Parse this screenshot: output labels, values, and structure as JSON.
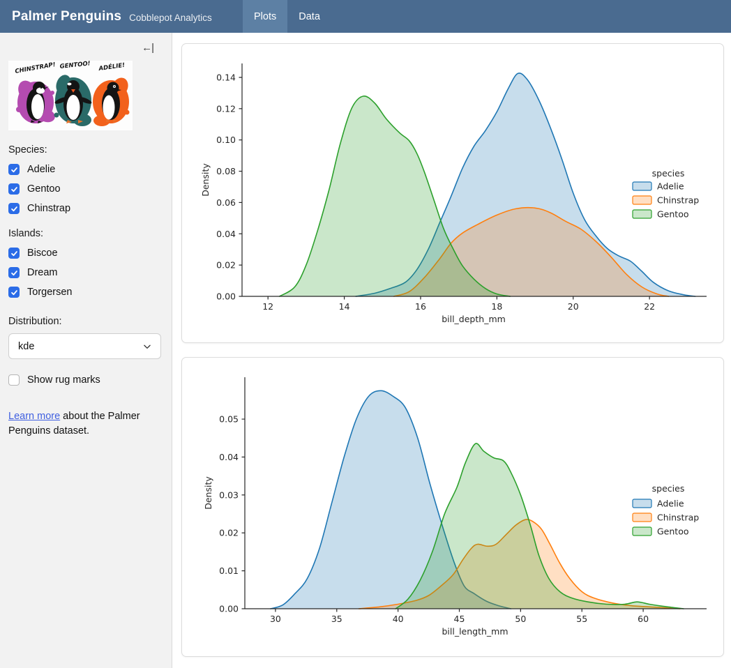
{
  "navbar": {
    "brand": "Palmer Penguins",
    "subtitle": "Cobblepot Analytics",
    "tabs": [
      {
        "label": "Plots",
        "active": true
      },
      {
        "label": "Data",
        "active": false
      }
    ]
  },
  "sidebar": {
    "collapse_glyph": "←|",
    "artwork": {
      "labels": [
        "CHINSTRAP!",
        "GENTOO!",
        "ADÉLIE!"
      ],
      "splash_colors": [
        "#b44bb0",
        "#2a6a68",
        "#f2611c"
      ]
    },
    "species": {
      "label": "Species:",
      "options": [
        {
          "label": "Adelie",
          "checked": true
        },
        {
          "label": "Gentoo",
          "checked": true
        },
        {
          "label": "Chinstrap",
          "checked": true
        }
      ]
    },
    "islands": {
      "label": "Islands:",
      "options": [
        {
          "label": "Biscoe",
          "checked": true
        },
        {
          "label": "Dream",
          "checked": true
        },
        {
          "label": "Torgersen",
          "checked": true
        }
      ]
    },
    "distribution": {
      "label": "Distribution:",
      "value": "kde"
    },
    "rug": {
      "label": "Show rug marks",
      "checked": false
    },
    "footer": {
      "link_text": "Learn more",
      "rest_text": " about the Palmer Penguins dataset."
    }
  },
  "theme": {
    "navbar_bg": "#4a6b90",
    "navbar_active_tab_bg": "#5d80a4",
    "sidebar_bg": "#f2f2f2",
    "checkbox_blue": "#2b6ce7",
    "link_blue": "#3f5fe0"
  },
  "chart_data": [
    {
      "type": "area",
      "subtype": "kde-density",
      "xlabel": "bill_depth_mm",
      "ylabel": "Density",
      "xlim": [
        11.32,
        23.46
      ],
      "ylim": [
        0,
        0.1489
      ],
      "xticks": [
        12,
        14,
        16,
        18,
        20,
        22
      ],
      "xtick_labels": [
        "12",
        "14",
        "16",
        "18",
        "20",
        "22"
      ],
      "yticks": [
        0,
        0.02,
        0.04,
        0.06,
        0.08,
        0.1,
        0.12,
        0.14
      ],
      "ytick_labels": [
        "0.00",
        "0.02",
        "0.04",
        "0.06",
        "0.08",
        "0.10",
        "0.12",
        "0.14"
      ],
      "grid": false,
      "legend": {
        "title": "species",
        "entries": [
          "Adelie",
          "Chinstrap",
          "Gentoo"
        ],
        "position": "center-right"
      },
      "series": [
        {
          "name": "Adelie",
          "color": "#1f77b4",
          "fill_opacity": 0.25,
          "points": [
            [
              14.3,
              0
            ],
            [
              14.8,
              0.002
            ],
            [
              15.2,
              0.005
            ],
            [
              15.6,
              0.009
            ],
            [
              15.9,
              0.017
            ],
            [
              16.2,
              0.03
            ],
            [
              16.5,
              0.047
            ],
            [
              16.8,
              0.064
            ],
            [
              17.1,
              0.082
            ],
            [
              17.4,
              0.096
            ],
            [
              17.7,
              0.106
            ],
            [
              18.0,
              0.118
            ],
            [
              18.3,
              0.133
            ],
            [
              18.55,
              0.1425
            ],
            [
              18.8,
              0.1385
            ],
            [
              19.1,
              0.1255
            ],
            [
              19.4,
              0.108
            ],
            [
              19.7,
              0.088
            ],
            [
              20.0,
              0.066
            ],
            [
              20.3,
              0.049
            ],
            [
              20.6,
              0.0385
            ],
            [
              20.9,
              0.0305
            ],
            [
              21.2,
              0.0258
            ],
            [
              21.5,
              0.0225
            ],
            [
              21.8,
              0.016
            ],
            [
              22.1,
              0.009
            ],
            [
              22.5,
              0.0035
            ],
            [
              22.9,
              0.001
            ],
            [
              23.2,
              0
            ]
          ]
        },
        {
          "name": "Chinstrap",
          "color": "#ff7f0e",
          "fill_opacity": 0.25,
          "points": [
            [
              15.3,
              0
            ],
            [
              15.7,
              0.003
            ],
            [
              16.1,
              0.012
            ],
            [
              16.5,
              0.024
            ],
            [
              16.8,
              0.034
            ],
            [
              17.1,
              0.0405
            ],
            [
              17.5,
              0.046
            ],
            [
              18.0,
              0.052
            ],
            [
              18.5,
              0.056
            ],
            [
              19.0,
              0.0565
            ],
            [
              19.4,
              0.0535
            ],
            [
              19.8,
              0.048
            ],
            [
              20.2,
              0.043
            ],
            [
              20.6,
              0.035
            ],
            [
              21.0,
              0.025
            ],
            [
              21.4,
              0.014
            ],
            [
              21.8,
              0.006
            ],
            [
              22.2,
              0.0015
            ],
            [
              22.5,
              0
            ]
          ]
        },
        {
          "name": "Gentoo",
          "color": "#2ca02c",
          "fill_opacity": 0.25,
          "points": [
            [
              12.3,
              0
            ],
            [
              12.7,
              0.006
            ],
            [
              13.0,
              0.02
            ],
            [
              13.3,
              0.042
            ],
            [
              13.6,
              0.068
            ],
            [
              13.9,
              0.098
            ],
            [
              14.2,
              0.1205
            ],
            [
              14.5,
              0.128
            ],
            [
              14.8,
              0.1235
            ],
            [
              15.1,
              0.1135
            ],
            [
              15.45,
              0.1045
            ],
            [
              15.7,
              0.0995
            ],
            [
              15.9,
              0.0915
            ],
            [
              16.1,
              0.0795
            ],
            [
              16.35,
              0.0615
            ],
            [
              16.6,
              0.0435
            ],
            [
              16.85,
              0.0305
            ],
            [
              17.1,
              0.0195
            ],
            [
              17.4,
              0.011
            ],
            [
              17.7,
              0.005
            ],
            [
              18.0,
              0.0015
            ],
            [
              18.35,
              0
            ]
          ]
        }
      ]
    },
    {
      "type": "area",
      "subtype": "kde-density",
      "xlabel": "bill_length_mm",
      "ylabel": "Density",
      "xlim": [
        27.5,
        65.06
      ],
      "ylim": [
        0,
        0.06104
      ],
      "xticks": [
        30,
        35,
        40,
        45,
        50,
        55,
        60
      ],
      "xtick_labels": [
        "30",
        "35",
        "40",
        "45",
        "50",
        "55",
        "60"
      ],
      "yticks": [
        0,
        0.01,
        0.02,
        0.03,
        0.04,
        0.05
      ],
      "ytick_labels": [
        "0.00",
        "0.01",
        "0.02",
        "0.03",
        "0.04",
        "0.05"
      ],
      "grid": false,
      "legend": {
        "title": "species",
        "entries": [
          "Adelie",
          "Chinstrap",
          "Gentoo"
        ],
        "position": "center-right"
      },
      "series": [
        {
          "name": "Adelie",
          "color": "#1f77b4",
          "fill_opacity": 0.25,
          "points": [
            [
              29.6,
              0
            ],
            [
              30.6,
              0.001
            ],
            [
              31.6,
              0.004
            ],
            [
              32.6,
              0.008
            ],
            [
              33.6,
              0.016
            ],
            [
              34.6,
              0.028
            ],
            [
              35.6,
              0.04
            ],
            [
              36.6,
              0.05
            ],
            [
              37.6,
              0.056
            ],
            [
              38.6,
              0.0575
            ],
            [
              39.6,
              0.056
            ],
            [
              40.6,
              0.053
            ],
            [
              41.6,
              0.045
            ],
            [
              42.6,
              0.033
            ],
            [
              43.6,
              0.022
            ],
            [
              44.6,
              0.012
            ],
            [
              45.4,
              0.006
            ],
            [
              46.2,
              0.004
            ],
            [
              47.2,
              0.002
            ],
            [
              48.2,
              0.0008
            ],
            [
              49.2,
              0
            ]
          ]
        },
        {
          "name": "Chinstrap",
          "color": "#ff7f0e",
          "fill_opacity": 0.25,
          "points": [
            [
              36.8,
              0
            ],
            [
              38.5,
              0.0005
            ],
            [
              40.0,
              0.0012
            ],
            [
              41.5,
              0.0022
            ],
            [
              42.5,
              0.0035
            ],
            [
              43.5,
              0.006
            ],
            [
              44.5,
              0.009
            ],
            [
              45.3,
              0.013
            ],
            [
              46.0,
              0.016
            ],
            [
              46.5,
              0.017
            ],
            [
              47.3,
              0.0165
            ],
            [
              48.0,
              0.017
            ],
            [
              48.8,
              0.0195
            ],
            [
              49.6,
              0.022
            ],
            [
              50.4,
              0.0235
            ],
            [
              51.0,
              0.023
            ],
            [
              51.7,
              0.021
            ],
            [
              52.4,
              0.017
            ],
            [
              53.2,
              0.012
            ],
            [
              54.0,
              0.008
            ],
            [
              55.0,
              0.0045
            ],
            [
              56.0,
              0.0028
            ],
            [
              57.5,
              0.0015
            ],
            [
              59.0,
              0.0008
            ],
            [
              60.5,
              0.0005
            ],
            [
              62.0,
              0.0002
            ],
            [
              63.0,
              0
            ]
          ]
        },
        {
          "name": "Gentoo",
          "color": "#2ca02c",
          "fill_opacity": 0.25,
          "points": [
            [
              39.8,
              0
            ],
            [
              40.8,
              0.0025
            ],
            [
              41.8,
              0.0075
            ],
            [
              42.8,
              0.015
            ],
            [
              43.8,
              0.025
            ],
            [
              44.8,
              0.032
            ],
            [
              45.5,
              0.0385
            ],
            [
              46.3,
              0.0435
            ],
            [
              47.0,
              0.0415
            ],
            [
              47.8,
              0.0398
            ],
            [
              48.6,
              0.039
            ],
            [
              49.2,
              0.036
            ],
            [
              50.0,
              0.03
            ],
            [
              50.8,
              0.022
            ],
            [
              51.5,
              0.014
            ],
            [
              52.3,
              0.008
            ],
            [
              53.2,
              0.0045
            ],
            [
              54.2,
              0.0028
            ],
            [
              55.5,
              0.0018
            ],
            [
              57.0,
              0.0012
            ],
            [
              58.5,
              0.0012
            ],
            [
              59.5,
              0.0018
            ],
            [
              60.5,
              0.0012
            ],
            [
              61.5,
              0.0007
            ],
            [
              62.5,
              0.0003
            ],
            [
              63.3,
              0
            ]
          ]
        }
      ]
    }
  ]
}
